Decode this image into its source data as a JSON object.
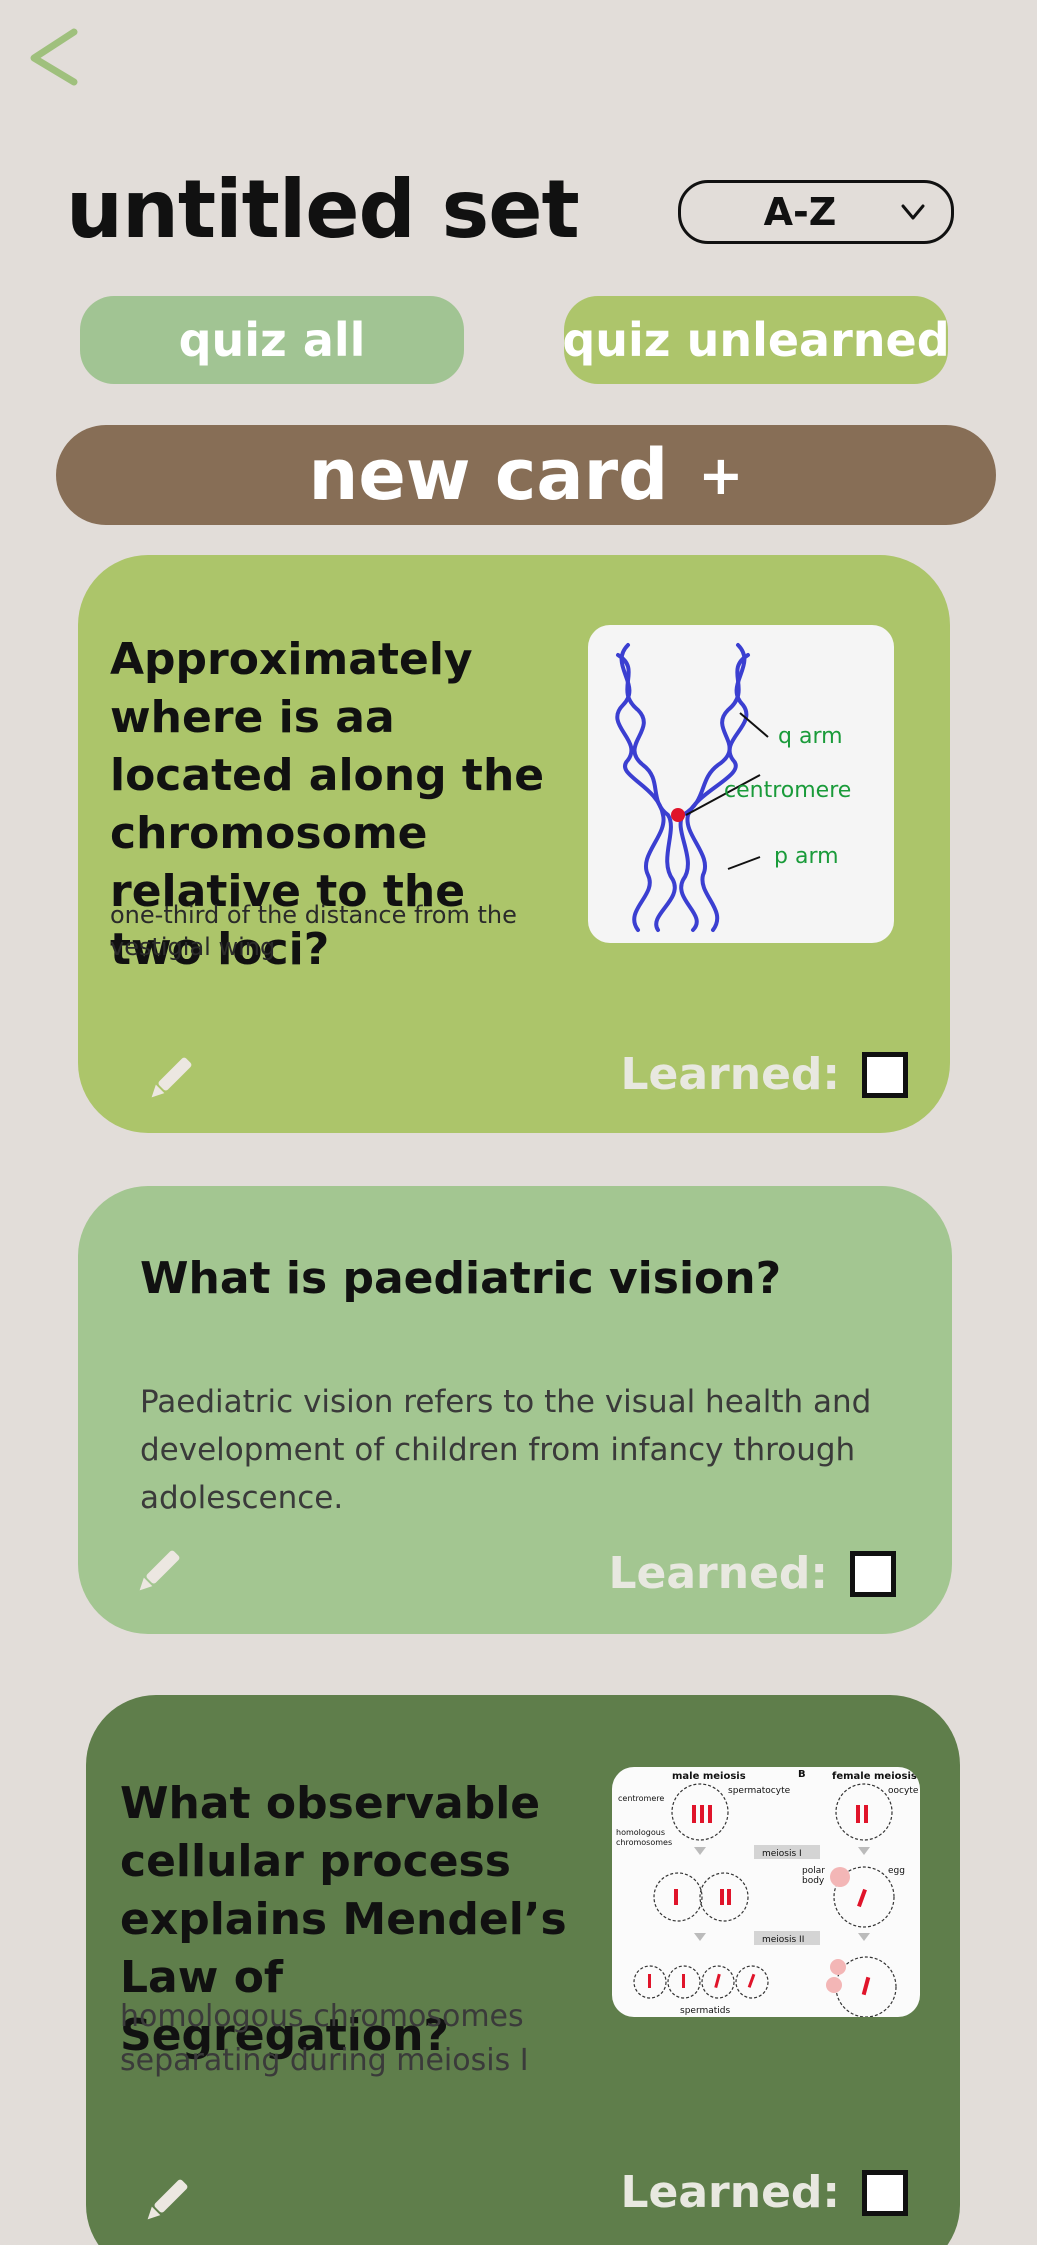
{
  "header": {
    "back_icon": "back-chevron-icon",
    "title": "untitled set",
    "sort": {
      "selected": "A-Z"
    }
  },
  "actions": {
    "quiz_all": "quiz all",
    "quiz_unlearned": "quiz unlearned",
    "new_card": "new card",
    "new_card_plus": "+"
  },
  "colors": {
    "accent_green": "#a1c493",
    "lime": "#adc56b",
    "brown": "#876e56",
    "dark_green": "#5f7e4b",
    "background": "#e2ddd9"
  },
  "cards": [
    {
      "question": "Approximately where is aa located along the chromosome relative to the two loci?",
      "answer": "one-third of the distance from the vestigial wing",
      "learned_label": "Learned:",
      "learned": false,
      "image": {
        "labels": {
          "q_arm": "q arm",
          "centromere": "centromere",
          "p_arm": "p arm"
        }
      }
    },
    {
      "question": "What is paediatric vision?",
      "answer": "Paediatric vision refers to the visual health and development of children from infancy through adolescence.",
      "learned_label": "Learned:",
      "learned": false
    },
    {
      "question": "What observable cellular process explains Mendel’s Law of Segregation?",
      "answer": "homologous chromosomes separating during meiosis I",
      "learned_label": "Learned:",
      "learned": false,
      "image": {
        "labels": {
          "panel_b": "B",
          "male": "male meiosis",
          "female": "female meiosis",
          "spermatocyte": "spermatocyte",
          "oocyte": "oocyte",
          "centromere": "centromere",
          "homologous": "homologous",
          "chromosomes": "chromosomes",
          "meiosis1": "meiosis I",
          "meiosis2": "meiosis II",
          "polar": "polar",
          "body": "body",
          "egg": "egg",
          "spermatids": "spermatids"
        }
      }
    }
  ]
}
